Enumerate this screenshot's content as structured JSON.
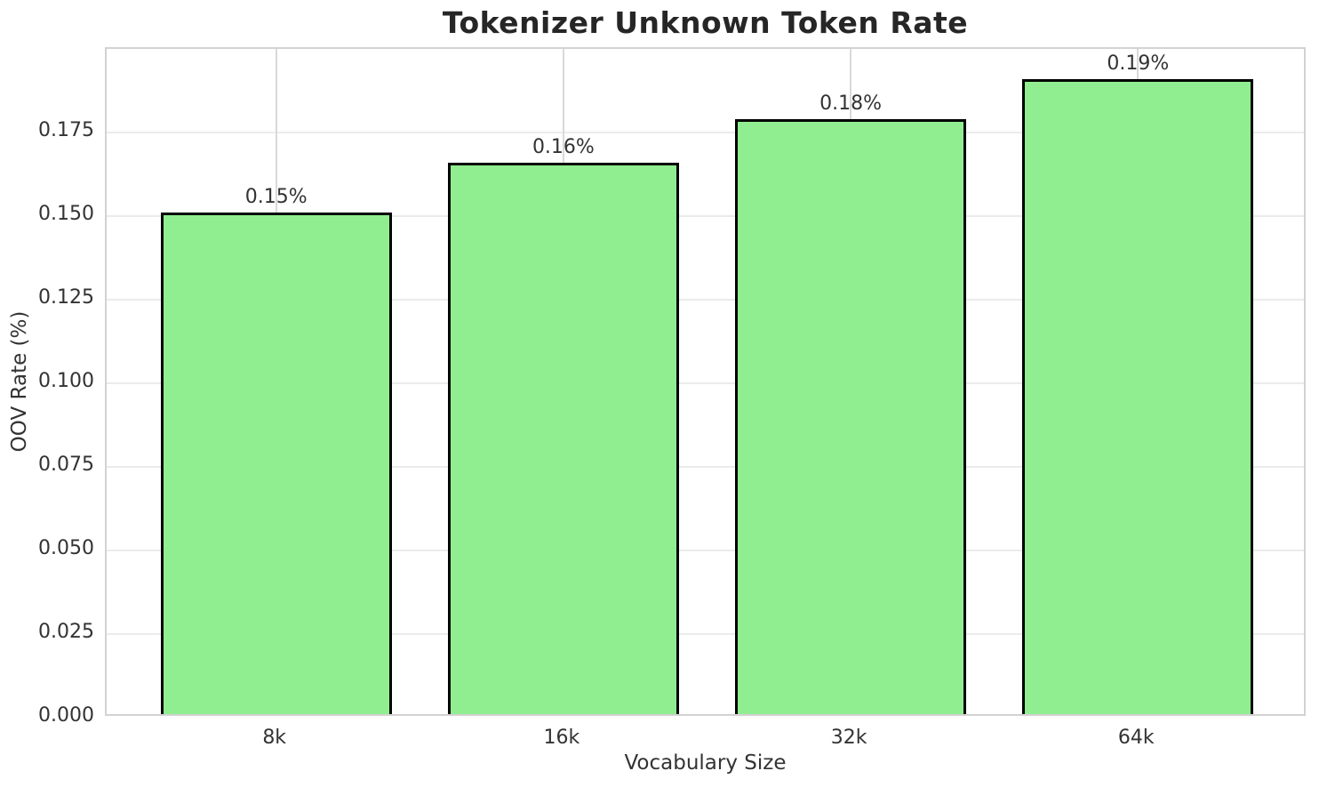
{
  "chart_data": {
    "type": "bar",
    "title": "Tokenizer Unknown Token Rate",
    "xlabel": "Vocabulary Size",
    "ylabel": "OOV Rate (%)",
    "categories": [
      "8k",
      "16k",
      "32k",
      "64k"
    ],
    "values": [
      0.15,
      0.165,
      0.178,
      0.19
    ],
    "bar_labels": [
      "0.15%",
      "0.16%",
      "0.18%",
      "0.19%"
    ],
    "ylim": [
      0,
      0.2
    ],
    "yticks": [
      "0.000",
      "0.025",
      "0.050",
      "0.075",
      "0.100",
      "0.125",
      "0.150",
      "0.175"
    ],
    "grid": "on",
    "legend_position": "none",
    "bar_color": "#90ee90",
    "bar_edge_color": "#000000",
    "grid_color": "#e8e8e8",
    "text_color": "#333333",
    "title_color": "#262626"
  }
}
